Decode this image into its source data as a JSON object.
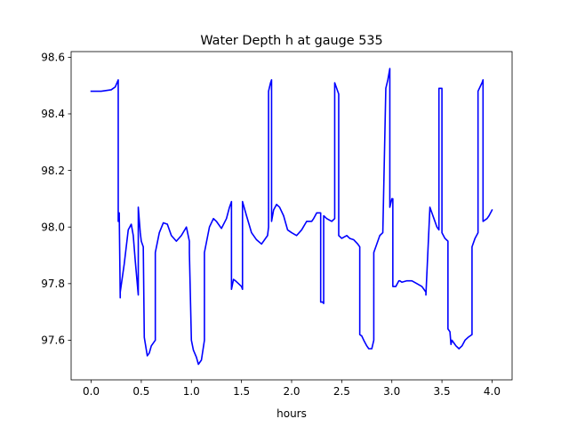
{
  "chart_data": {
    "type": "line",
    "title": "Water Depth h at gauge 535",
    "xlabel": "hours",
    "ylabel": "",
    "xlim": [
      -0.2,
      4.2
    ],
    "ylim": [
      97.46,
      98.62
    ],
    "x_ticks": [
      0.0,
      0.5,
      1.0,
      1.5,
      2.0,
      2.5,
      3.0,
      3.5,
      4.0
    ],
    "x_tick_labels": [
      "0.0",
      "0.5",
      "1.0",
      "1.5",
      "2.0",
      "2.5",
      "3.0",
      "3.5",
      "4.0"
    ],
    "y_ticks": [
      97.6,
      97.8,
      98.0,
      98.2,
      98.4,
      98.6
    ],
    "y_tick_labels": [
      "97.6",
      "97.8",
      "98.0",
      "98.2",
      "98.4",
      "98.6"
    ],
    "grid": false,
    "series": [
      {
        "color": "#0000ff",
        "x": [
          0.0,
          0.1,
          0.2,
          0.24,
          0.27,
          0.27,
          0.28,
          0.29,
          0.29,
          0.33,
          0.37,
          0.4,
          0.42,
          0.44,
          0.47,
          0.47,
          0.49,
          0.5,
          0.52,
          0.53,
          0.53,
          0.56,
          0.58,
          0.6,
          0.64,
          0.64,
          0.68,
          0.72,
          0.76,
          0.8,
          0.85,
          0.9,
          0.95,
          0.98,
          0.98,
          1.0,
          1.02,
          1.05,
          1.07,
          1.1,
          1.13,
          1.13,
          1.18,
          1.22,
          1.25,
          1.3,
          1.35,
          1.38,
          1.4,
          1.4,
          1.42,
          1.44,
          1.47,
          1.5,
          1.51,
          1.51,
          1.55,
          1.6,
          1.65,
          1.7,
          1.76,
          1.77,
          1.77,
          1.79,
          1.8,
          1.8,
          1.82,
          1.85,
          1.88,
          1.92,
          1.96,
          2.0,
          2.05,
          2.1,
          2.15,
          2.2,
          2.22,
          2.25,
          2.29,
          2.29,
          2.31,
          2.32,
          2.32,
          2.35,
          2.4,
          2.43,
          2.43,
          2.45,
          2.47,
          2.47,
          2.5,
          2.55,
          2.58,
          2.62,
          2.66,
          2.68,
          2.68,
          2.7,
          2.72,
          2.75,
          2.77,
          2.8,
          2.82,
          2.82,
          2.88,
          2.91,
          2.94,
          2.96,
          2.98,
          2.98,
          3.0,
          3.01,
          3.01,
          3.04,
          3.07,
          3.08,
          3.1,
          3.15,
          3.2,
          3.25,
          3.3,
          3.34,
          3.34,
          3.38,
          3.42,
          3.45,
          3.47,
          3.47,
          3.5,
          3.5,
          3.53,
          3.56,
          3.56,
          3.58,
          3.59,
          3.6,
          3.62,
          3.64,
          3.67,
          3.7,
          3.73,
          3.76,
          3.8,
          3.8,
          3.83,
          3.86,
          3.86,
          3.9,
          3.91,
          3.91,
          3.95,
          3.97,
          4.0
        ],
        "y": [
          98.48,
          98.48,
          98.485,
          98.495,
          98.52,
          98.02,
          98.05,
          97.75,
          97.77,
          97.87,
          97.99,
          98.01,
          97.97,
          97.88,
          97.76,
          98.07,
          97.98,
          97.95,
          97.93,
          97.61,
          97.61,
          97.545,
          97.555,
          97.58,
          97.6,
          97.91,
          97.98,
          98.015,
          98.01,
          97.97,
          97.95,
          97.97,
          98.0,
          97.95,
          97.91,
          97.6,
          97.565,
          97.54,
          97.515,
          97.53,
          97.6,
          97.91,
          98.0,
          98.03,
          98.02,
          97.995,
          98.03,
          98.07,
          98.09,
          97.78,
          97.815,
          97.81,
          97.8,
          97.79,
          97.78,
          98.09,
          98.04,
          97.98,
          97.955,
          97.94,
          97.97,
          98.0,
          98.48,
          98.51,
          98.52,
          98.02,
          98.06,
          98.08,
          98.07,
          98.04,
          97.99,
          97.98,
          97.97,
          97.99,
          98.02,
          98.02,
          98.03,
          98.05,
          98.05,
          97.735,
          97.735,
          97.73,
          98.04,
          98.03,
          98.02,
          98.03,
          98.51,
          98.49,
          98.47,
          97.97,
          97.96,
          97.97,
          97.96,
          97.955,
          97.94,
          97.93,
          97.62,
          97.615,
          97.6,
          97.58,
          97.57,
          97.57,
          97.6,
          97.91,
          97.97,
          97.98,
          98.49,
          98.52,
          98.56,
          98.07,
          98.1,
          98.1,
          97.79,
          97.79,
          97.81,
          97.81,
          97.805,
          97.81,
          97.81,
          97.8,
          97.79,
          97.77,
          97.76,
          98.07,
          98.03,
          98.0,
          97.99,
          98.49,
          98.49,
          97.98,
          97.96,
          97.95,
          97.64,
          97.63,
          97.585,
          97.6,
          97.59,
          97.58,
          97.57,
          97.58,
          97.6,
          97.61,
          97.62,
          97.93,
          97.96,
          97.98,
          98.48,
          98.51,
          98.52,
          98.02,
          98.03,
          98.04,
          98.06
        ]
      }
    ]
  }
}
